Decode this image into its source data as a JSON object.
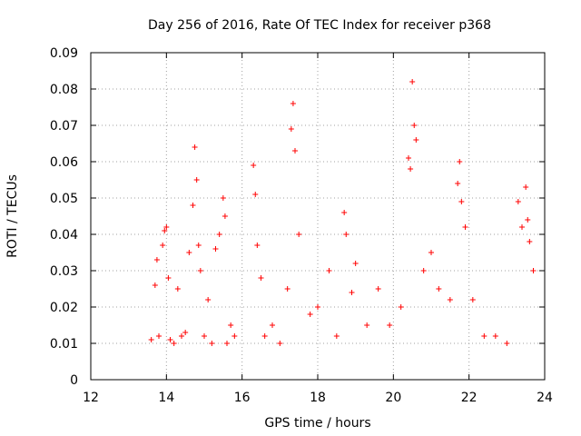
{
  "chart_data": {
    "type": "scatter",
    "title": "Day 256 of 2016, Rate Of TEC Index for receiver p368",
    "xlabel": "GPS time / hours",
    "ylabel": "ROTI / TECUs",
    "xlim": [
      12,
      24
    ],
    "ylim": [
      0,
      0.09
    ],
    "xticks": [
      12,
      14,
      16,
      18,
      20,
      22,
      24
    ],
    "yticks": [
      0,
      0.01,
      0.02,
      0.03,
      0.04,
      0.05,
      0.06,
      0.07,
      0.08,
      0.09
    ],
    "xtick_labels": [
      "12",
      "14",
      "16",
      "18",
      "20",
      "22",
      "24"
    ],
    "ytick_labels": [
      "0",
      "0.01",
      "0.02",
      "0.03",
      "0.04",
      "0.05",
      "0.06",
      "0.07",
      "0.08",
      "0.09"
    ],
    "grid": true,
    "marker": "+",
    "color": "#ff0000",
    "series": [
      {
        "name": "p368",
        "x": [
          13.6,
          13.7,
          13.75,
          13.8,
          13.9,
          13.95,
          14.0,
          14.05,
          14.1,
          14.2,
          14.3,
          14.4,
          14.5,
          14.6,
          14.7,
          14.75,
          14.8,
          14.85,
          14.9,
          15.0,
          15.1,
          15.2,
          15.3,
          15.4,
          15.5,
          15.55,
          15.6,
          15.7,
          15.8,
          16.3,
          16.35,
          16.4,
          16.5,
          16.6,
          16.8,
          17.0,
          17.2,
          17.3,
          17.35,
          17.4,
          17.5,
          17.8,
          18.0,
          18.3,
          18.5,
          18.7,
          18.75,
          18.9,
          19.0,
          19.3,
          19.6,
          19.9,
          20.2,
          20.4,
          20.45,
          20.5,
          20.55,
          20.6,
          20.8,
          21.0,
          21.2,
          21.5,
          21.7,
          21.75,
          21.8,
          21.9,
          22.1,
          22.4,
          22.7,
          23.0,
          23.3,
          23.4,
          23.5,
          23.55,
          23.6,
          23.7
        ],
        "y": [
          0.011,
          0.026,
          0.033,
          0.012,
          0.037,
          0.041,
          0.042,
          0.028,
          0.011,
          0.01,
          0.025,
          0.012,
          0.013,
          0.035,
          0.048,
          0.064,
          0.055,
          0.037,
          0.03,
          0.012,
          0.022,
          0.01,
          0.036,
          0.04,
          0.05,
          0.045,
          0.01,
          0.015,
          0.012,
          0.059,
          0.051,
          0.037,
          0.028,
          0.012,
          0.015,
          0.01,
          0.025,
          0.069,
          0.076,
          0.063,
          0.04,
          0.018,
          0.02,
          0.03,
          0.012,
          0.046,
          0.04,
          0.024,
          0.032,
          0.015,
          0.025,
          0.015,
          0.02,
          0.061,
          0.058,
          0.082,
          0.07,
          0.066,
          0.03,
          0.035,
          0.025,
          0.022,
          0.054,
          0.06,
          0.049,
          0.042,
          0.022,
          0.012,
          0.012,
          0.01,
          0.049,
          0.042,
          0.053,
          0.044,
          0.038,
          0.03
        ]
      }
    ]
  }
}
